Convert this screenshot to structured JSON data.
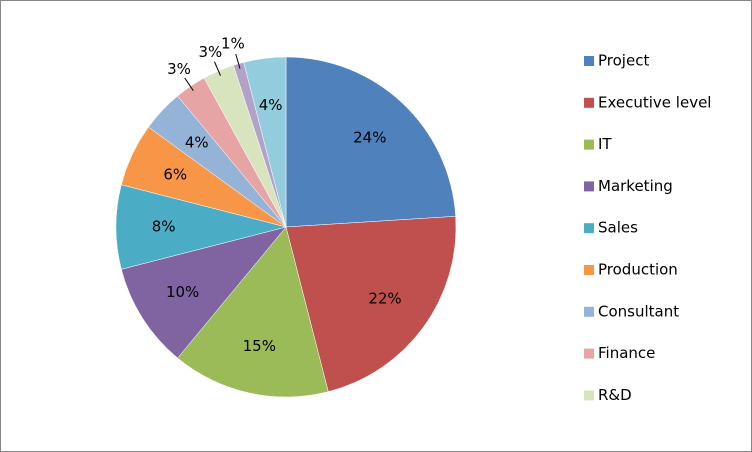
{
  "chart_data": {
    "type": "pie",
    "categories": [
      "Project",
      "Executive level",
      "IT",
      "Marketing",
      "Sales",
      "Production",
      "Consultant",
      "Finance",
      "R&D",
      null,
      null
    ],
    "values": [
      24,
      22,
      15,
      10,
      8,
      6,
      4,
      3,
      3,
      1,
      4
    ],
    "value_labels": [
      "24%",
      "22%",
      "15%",
      "10%",
      "8%",
      "6%",
      "4%",
      "3%",
      "3%",
      "1%",
      "4%"
    ],
    "colors": [
      "#4f81bd",
      "#c0504d",
      "#9bbb59",
      "#8064a2",
      "#4bacc6",
      "#f79646",
      "#95b3d7",
      "#e6a5a4",
      "#d7e4bd",
      "#b3a2c7",
      "#93cddd"
    ],
    "legend": "right"
  }
}
